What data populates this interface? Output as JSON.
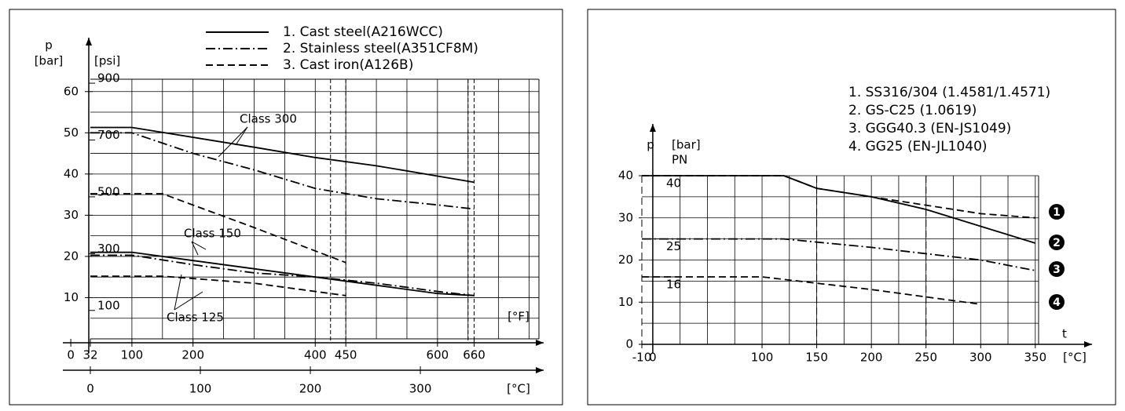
{
  "chart_data": [
    {
      "type": "line",
      "y_label": "p",
      "y_unit": "[bar]",
      "y2_unit": "[psi]",
      "x_unit": "[°F]",
      "x2_unit": "[°C]",
      "xlim": [
        32,
        766
      ],
      "xticks": [
        0,
        32,
        100,
        200,
        400,
        450,
        600,
        660
      ],
      "x2lim": [
        0,
        407.8
      ],
      "x2ticks": [
        0,
        100,
        200,
        300
      ],
      "ylim": [
        0,
        63
      ],
      "yticks": [
        10,
        20,
        30,
        40,
        50,
        60
      ],
      "y2lim": [
        0,
        914
      ],
      "y2ticks": [
        100,
        300,
        500,
        700,
        900
      ],
      "grid": true,
      "xgrid": [
        100,
        150,
        200,
        250,
        300,
        350,
        400,
        450,
        500,
        550,
        600,
        650,
        700,
        750
      ],
      "ygrid": [
        5,
        10,
        15,
        20,
        25,
        30,
        35,
        40,
        45,
        50,
        55,
        60
      ],
      "ref_lines": [
        425,
        450,
        650,
        660
      ],
      "series": [
        {
          "name": "1. Cast steel(A216WCC)",
          "dash": "solid",
          "color": "#000000",
          "curves": [
            {
              "x": [
                32,
                100,
                300,
                400,
                500,
                600,
                660
              ],
              "values": [
                51.3,
                51.3,
                46.5,
                44,
                42,
                39.5,
                38
              ]
            },
            {
              "x": [
                32,
                100,
                200,
                300,
                400,
                500,
                600,
                660
              ],
              "values": [
                21,
                21,
                19,
                17,
                15,
                13,
                11,
                10.5
              ]
            }
          ]
        },
        {
          "name": "2. Stainless steel(A351CF8M)",
          "dash": "dashdot",
          "color": "#000000",
          "curves": [
            {
              "x": [
                32,
                100,
                200,
                300,
                400,
                500,
                600,
                660
              ],
              "values": [
                50,
                50,
                45,
                41,
                36.5,
                34,
                32.5,
                31.5
              ]
            },
            {
              "x": [
                32,
                100,
                200,
                300,
                400,
                500,
                600,
                660
              ],
              "values": [
                20.3,
                20.3,
                18,
                16,
                15,
                13.5,
                11.5,
                10.5
              ]
            }
          ]
        },
        {
          "name": "3. Cast iron(A126B)",
          "dash": "dashed",
          "color": "#000000",
          "curves": [
            {
              "x": [
                32,
                150,
                300,
                450
              ],
              "values": [
                35.2,
                35.2,
                27,
                18.5
              ]
            },
            {
              "x": [
                32,
                150,
                300,
                450
              ],
              "values": [
                15.2,
                15.2,
                13.5,
                10.5
              ]
            }
          ]
        }
      ],
      "annotations": [
        "Class 300",
        "Class 150",
        "Class 125"
      ]
    },
    {
      "type": "line",
      "y_label": "p",
      "y_unit": "[bar]",
      "y_unit2": "PN",
      "x_label": "t",
      "x_unit": "[°C]",
      "xlim": [
        -10,
        353
      ],
      "xticks": [
        -10,
        0,
        100,
        150,
        200,
        250,
        300,
        350
      ],
      "ylim": [
        0,
        40
      ],
      "yticks": [
        0,
        10,
        20,
        30,
        40
      ],
      "pn_ticks": [
        40,
        25,
        16
      ],
      "grid": true,
      "xgrid": [
        25,
        50,
        75,
        100,
        125,
        150,
        175,
        200,
        225,
        250,
        275,
        300,
        325,
        350
      ],
      "ygrid": [
        5,
        10,
        15,
        20,
        25,
        30,
        35,
        40
      ],
      "ref_lines": [
        -10,
        150,
        250
      ],
      "series": [
        {
          "name": "1. SS316/304 (1.4581/1.4571)",
          "marker": "1",
          "dash": "dashed",
          "color": "#000000",
          "curves": [
            {
              "x": [
                -10,
                120,
                150,
                200,
                300,
                350
              ],
              "values": [
                40,
                40,
                37,
                35,
                31,
                30
              ]
            }
          ]
        },
        {
          "name": "2. GS-C25 (1.0619)",
          "marker": "2",
          "dash": "solid",
          "color": "#000000",
          "curves": [
            {
              "x": [
                -10,
                120,
                150,
                200,
                250,
                300,
                350
              ],
              "values": [
                40,
                40,
                37,
                35,
                32,
                28,
                24
              ]
            }
          ]
        },
        {
          "name": "3. GGG40.3 (EN-JS1049)",
          "marker": "3",
          "dash": "dashdot",
          "color": "#000000",
          "curves": [
            {
              "x": [
                -10,
                120,
                200,
                300,
                350
              ],
              "values": [
                25,
                25,
                23,
                20,
                17.5
              ]
            }
          ]
        },
        {
          "name": "4. GG25 (EN-JL1040)",
          "marker": "4",
          "dash": "dashed",
          "color": "#000000",
          "curves": [
            {
              "x": [
                -10,
                100,
                200,
                300
              ],
              "values": [
                16,
                16,
                13,
                9.5
              ]
            }
          ]
        }
      ]
    }
  ]
}
